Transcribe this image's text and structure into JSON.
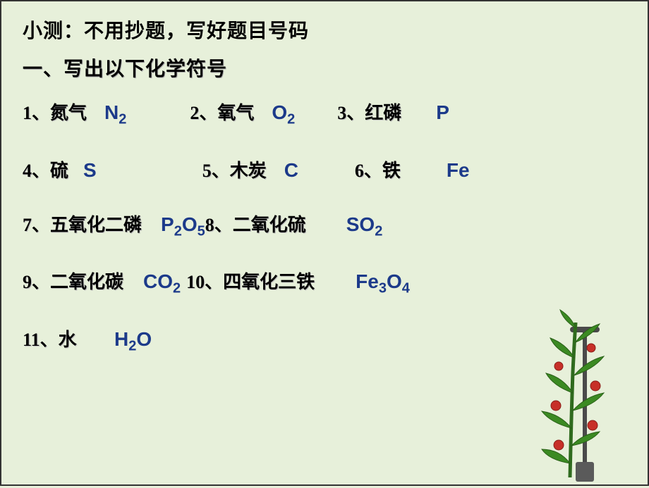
{
  "background_color": "#e7f0da",
  "text_color": "#000000",
  "formula_color": "#1c3a8a",
  "header_fontsize": 28,
  "body_fontsize": 26,
  "formula_fontsize": 28,
  "header": "小测：不用抄题，写好题目号码",
  "section_title": "一、写出以下化学符号",
  "rows": [
    [
      {
        "label": "1、氮气",
        "formula_html": "N<sub>2</sub>",
        "label_w": 110,
        "gap_after": 90
      },
      {
        "label": "2、氧气",
        "formula_html": "O<sub>2</sub>",
        "label_w": 110,
        "gap_after": 60
      },
      {
        "label": "3、红磷",
        "formula_html": "P",
        "label_w": 110,
        "pre_gap": 30
      }
    ],
    [
      {
        "label": "4、硫",
        "formula_html": "S",
        "label_w": 80,
        "gap_after": 150
      },
      {
        "label": "5、木炭",
        "formula_html": "C",
        "label_w": 110,
        "gap_after": 80
      },
      {
        "label": "6、铁",
        "formula_html": "Fe",
        "label_w": 80,
        "pre_gap": 50
      }
    ],
    [
      {
        "label": "7、五氧化二磷",
        "formula_html": "P<sub>2</sub>O<sub>5</sub>",
        "label_w": 190,
        "gap_after": 0
      },
      {
        "label": "8、二氧化硫",
        "formula_html": "SO<sub>2</sub>",
        "label_w": 170,
        "pre_gap": 30
      }
    ],
    [
      {
        "label": "9、二氧化碳",
        "formula_html": "CO<sub>2</sub>",
        "label_w": 165,
        "gap_after": 8
      },
      {
        "label": "10、四氧化三铁",
        "formula_html": "Fe<sub>3</sub>O<sub>4</sub>",
        "label_w": 210,
        "pre_gap": 30
      }
    ],
    [
      {
        "label": "11、水",
        "formula_html": "H<sub>2</sub>O",
        "label_w": 100,
        "pre_gap": 30
      }
    ]
  ],
  "plant": {
    "stem_color": "#2f6b1e",
    "leaf_color": "#3b8a22",
    "fruit_color": "#c73028",
    "stake_color": "#4a4a4a"
  }
}
